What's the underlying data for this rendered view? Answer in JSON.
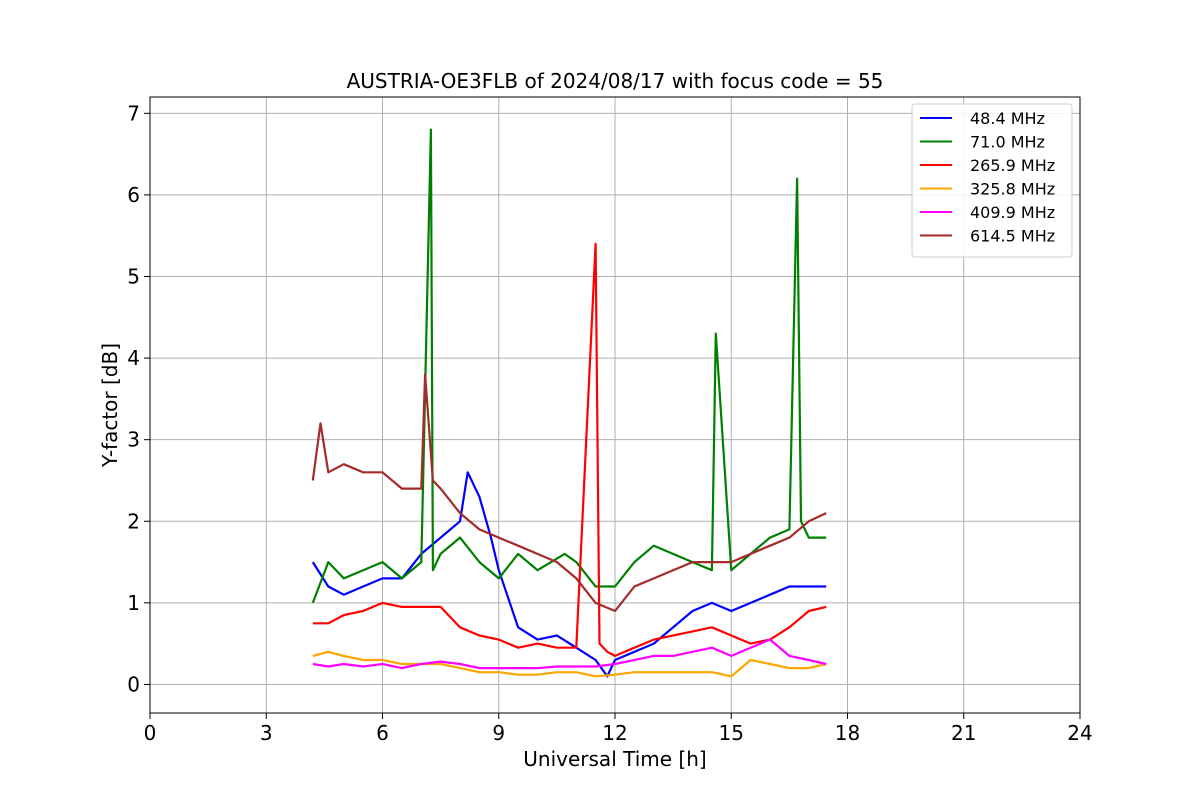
{
  "chart_data": {
    "type": "line",
    "title": "AUSTRIA-OE3FLB of 2024/08/17 with focus code = 55",
    "xlabel": "Universal Time [h]",
    "ylabel": "Y-factor [dB]",
    "xlim": [
      0,
      24
    ],
    "ylim": [
      -0.35,
      7.2
    ],
    "xticks": [
      0,
      3,
      6,
      9,
      12,
      15,
      18,
      21,
      24
    ],
    "yticks": [
      0,
      1,
      2,
      3,
      4,
      5,
      6,
      7
    ],
    "grid": true,
    "legend_position": "top-right",
    "series": [
      {
        "name": " 48.4 MHz",
        "color": "#0000ff",
        "x": [
          4.2,
          4.6,
          5.0,
          5.5,
          6.0,
          6.5,
          7.0,
          7.5,
          8.0,
          8.2,
          8.5,
          8.8,
          9.0,
          9.5,
          10.0,
          10.5,
          11.0,
          11.5,
          11.8,
          12.0,
          12.5,
          13.0,
          13.5,
          14.0,
          14.5,
          15.0,
          15.5,
          16.0,
          16.5,
          17.0,
          17.45
        ],
        "y": [
          1.5,
          1.2,
          1.1,
          1.2,
          1.3,
          1.3,
          1.6,
          1.8,
          2.0,
          2.6,
          2.3,
          1.8,
          1.4,
          0.7,
          0.55,
          0.6,
          0.45,
          0.3,
          0.1,
          0.3,
          0.4,
          0.5,
          0.7,
          0.9,
          1.0,
          0.9,
          1.0,
          1.1,
          1.2,
          1.2,
          1.2
        ]
      },
      {
        "name": " 71.0 MHz",
        "color": "#008000",
        "x": [
          4.2,
          4.6,
          5.0,
          5.5,
          6.0,
          6.5,
          7.0,
          7.25,
          7.3,
          7.5,
          8.0,
          8.5,
          9.0,
          9.5,
          10.0,
          10.7,
          11.0,
          11.5,
          12.0,
          12.5,
          13.0,
          13.5,
          14.0,
          14.5,
          14.6,
          15.0,
          15.5,
          16.0,
          16.5,
          16.7,
          16.8,
          17.0,
          17.45
        ],
        "y": [
          1.0,
          1.5,
          1.3,
          1.4,
          1.5,
          1.3,
          1.5,
          6.8,
          1.4,
          1.6,
          1.8,
          1.5,
          1.3,
          1.6,
          1.4,
          1.6,
          1.5,
          1.2,
          1.2,
          1.5,
          1.7,
          1.6,
          1.5,
          1.4,
          4.3,
          1.4,
          1.6,
          1.8,
          1.9,
          6.2,
          2.0,
          1.8,
          1.8
        ]
      },
      {
        "name": "265.9 MHz",
        "color": "#ff0000",
        "x": [
          4.2,
          4.6,
          5.0,
          5.5,
          6.0,
          6.5,
          7.0,
          7.5,
          8.0,
          8.5,
          9.0,
          9.5,
          10.0,
          10.5,
          11.0,
          11.5,
          11.6,
          11.8,
          12.0,
          12.5,
          13.0,
          13.5,
          14.0,
          14.5,
          15.0,
          15.5,
          16.0,
          16.5,
          17.0,
          17.45
        ],
        "y": [
          0.75,
          0.75,
          0.85,
          0.9,
          1.0,
          0.95,
          0.95,
          0.95,
          0.7,
          0.6,
          0.55,
          0.45,
          0.5,
          0.45,
          0.45,
          5.4,
          0.5,
          0.4,
          0.35,
          0.45,
          0.55,
          0.6,
          0.65,
          0.7,
          0.6,
          0.5,
          0.55,
          0.7,
          0.9,
          0.95
        ]
      },
      {
        "name": "325.8 MHz",
        "color": "#ffa500",
        "x": [
          4.2,
          4.6,
          5.0,
          5.5,
          6.0,
          6.5,
          7.0,
          7.5,
          8.0,
          8.5,
          9.0,
          9.5,
          10.0,
          10.5,
          11.0,
          11.5,
          12.0,
          12.5,
          13.0,
          13.5,
          14.0,
          14.5,
          15.0,
          15.5,
          16.0,
          16.5,
          17.0,
          17.45
        ],
        "y": [
          0.35,
          0.4,
          0.35,
          0.3,
          0.3,
          0.25,
          0.25,
          0.25,
          0.2,
          0.15,
          0.15,
          0.12,
          0.12,
          0.15,
          0.15,
          0.1,
          0.12,
          0.15,
          0.15,
          0.15,
          0.15,
          0.15,
          0.1,
          0.3,
          0.25,
          0.2,
          0.2,
          0.25
        ]
      },
      {
        "name": "409.9 MHz",
        "color": "#ff00ff",
        "x": [
          4.2,
          4.6,
          5.0,
          5.5,
          6.0,
          6.5,
          7.0,
          7.5,
          8.0,
          8.5,
          9.0,
          9.5,
          10.0,
          10.5,
          11.0,
          11.5,
          12.0,
          12.5,
          13.0,
          13.5,
          14.0,
          14.5,
          15.0,
          15.5,
          16.0,
          16.5,
          17.0,
          17.45
        ],
        "y": [
          0.25,
          0.22,
          0.25,
          0.22,
          0.25,
          0.2,
          0.25,
          0.28,
          0.25,
          0.2,
          0.2,
          0.2,
          0.2,
          0.22,
          0.22,
          0.22,
          0.25,
          0.3,
          0.35,
          0.35,
          0.4,
          0.45,
          0.35,
          0.45,
          0.55,
          0.35,
          0.3,
          0.25
        ]
      },
      {
        "name": "614.5 MHz",
        "color": "#a52a2a",
        "x": [
          4.2,
          4.4,
          4.6,
          5.0,
          5.5,
          6.0,
          6.5,
          7.0,
          7.1,
          7.3,
          7.5,
          8.0,
          8.5,
          9.0,
          9.5,
          10.0,
          10.5,
          11.0,
          11.5,
          12.0,
          12.5,
          13.0,
          13.5,
          14.0,
          14.5,
          15.0,
          15.5,
          16.0,
          16.5,
          17.0,
          17.45
        ],
        "y": [
          2.5,
          3.2,
          2.6,
          2.7,
          2.6,
          2.6,
          2.4,
          2.4,
          3.8,
          2.5,
          2.4,
          2.1,
          1.9,
          1.8,
          1.7,
          1.6,
          1.5,
          1.3,
          1.0,
          0.9,
          1.2,
          1.3,
          1.4,
          1.5,
          1.5,
          1.5,
          1.6,
          1.7,
          1.8,
          2.0,
          2.1
        ]
      }
    ]
  }
}
